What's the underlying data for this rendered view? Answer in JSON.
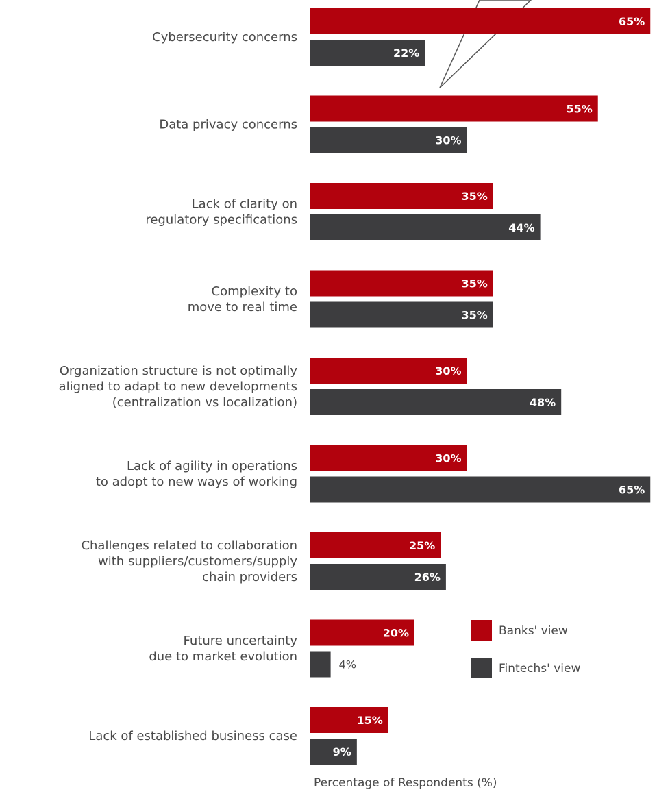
{
  "chart_data": {
    "type": "bar",
    "orientation": "horizontal",
    "xlabel": "Percentage of Respondents (%)",
    "xlim": [
      0,
      65
    ],
    "grid": false,
    "legend_position": "right, beside lower bars",
    "categories": [
      [
        "Cybersecurity concerns"
      ],
      [
        "Data privacy concerns"
      ],
      [
        "Lack of clarity on",
        "regulatory specifications"
      ],
      [
        "Complexity to",
        "move to real time"
      ],
      [
        "Organization structure is not optimally",
        "aligned to adapt to new developments",
        "(centralization vs localization)"
      ],
      [
        "Lack of agility in operations",
        "to adopt to new ways of working"
      ],
      [
        "Challenges related to collaboration",
        "with suppliers/customers/supply",
        "chain providers"
      ],
      [
        "Future uncertainty",
        "due to market evolution"
      ],
      [
        "Lack of established business case"
      ]
    ],
    "series": [
      {
        "name": "Banks' view",
        "color": "#b2020d",
        "values": [
          65,
          55,
          35,
          35,
          30,
          30,
          25,
          20,
          15
        ],
        "labels": [
          "65%",
          "55%",
          "35%",
          "35%",
          "30%",
          "30%",
          "25%",
          "20%",
          "15%"
        ]
      },
      {
        "name": "Fintechs' view",
        "color": "#3d3d3f",
        "values": [
          22,
          30,
          44,
          35,
          48,
          65,
          26,
          4,
          9
        ],
        "labels": [
          "22%",
          "30%",
          "44%",
          "35%",
          "48%",
          "65%",
          "26%",
          "4%",
          "9%"
        ]
      }
    ],
    "callout_color": "#ffffff"
  }
}
